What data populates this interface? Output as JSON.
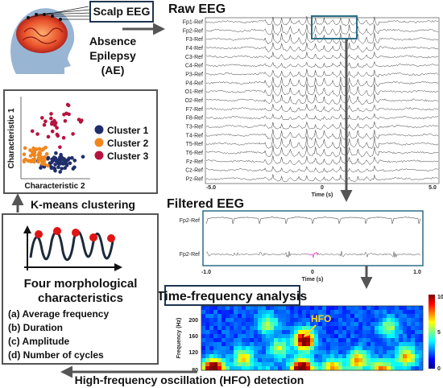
{
  "scalp_eeg": "Scalp EEG",
  "ae_label": [
    "Absence",
    "Epilepsy",
    "(AE)"
  ],
  "raw_eeg": {
    "title": "Raw EEG",
    "channels": [
      "Fp1-Ref",
      "Fp2-Ref",
      "F3-Ref",
      "F4-Ref",
      "C3-Ref",
      "C4-Ref",
      "P3-Ref",
      "P4-Ref",
      "O1-Ref",
      "O2-Ref",
      "F7-Ref",
      "F8-Ref",
      "T3-Ref",
      "T4-Ref",
      "T5-Ref",
      "T6-Ref",
      "Fz-Ref",
      "Cz-Ref",
      "Pz-Ref"
    ],
    "ticks": [
      "-5.0",
      "0",
      "5.0"
    ],
    "axis_label": "Time (s)"
  },
  "filtered_eeg": {
    "title": "Filtered EEG",
    "channels": [
      "Fp2-Ref",
      "Fp2-Ref"
    ],
    "ticks": [
      "-1.0",
      "0",
      "1.0"
    ],
    "axis_label": "Time (s)"
  },
  "time_frequency": {
    "title": "Time-frequency analysis",
    "y_label": "Frequency (Hz)",
    "y_ticks": [
      "200",
      "160",
      "120",
      "80"
    ],
    "colorbar_ticks": [
      "10",
      "5",
      "0"
    ],
    "annotation": "HFO"
  },
  "hfo_detection": "High-frequency oscillation (HFO) detection",
  "morphology": {
    "title_lines": [
      "Four morphological",
      "characteristics"
    ],
    "items": [
      "(a) Average frequency",
      "(b) Duration",
      "(c) Amplitude",
      "(d) Number of cycles"
    ]
  },
  "kmeans": "K-means clustering",
  "cluster_plot": {
    "y_label": "Characteristic 1",
    "x_label": "Characteristic 2",
    "legend": [
      "Cluster 1",
      "Cluster 2",
      "Cluster 3"
    ]
  }
}
